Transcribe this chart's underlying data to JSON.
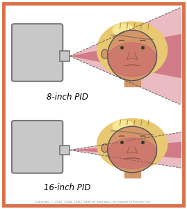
{
  "bg_color": "#ffffff",
  "border_color": "#d9704a",
  "top_label": "8-inch PID",
  "bottom_label": "16-inch PID",
  "copyright": "Copyright © 2012, 2008, 2000, 1996 by Saunders, an imprint of Elsevier Inc.",
  "pid_fill": "#c8c8c8",
  "pid_stroke": "#777777",
  "beam_wide_fill": "#e8b0b8",
  "beam_narrow_fill": "#c86070",
  "face_skin": "#d4956a",
  "face_dark": "#b87050",
  "face_outline": "#555555",
  "hair_color": "#e8c870",
  "hair_highlight": "#f5e898",
  "ear_color": "#c88060"
}
